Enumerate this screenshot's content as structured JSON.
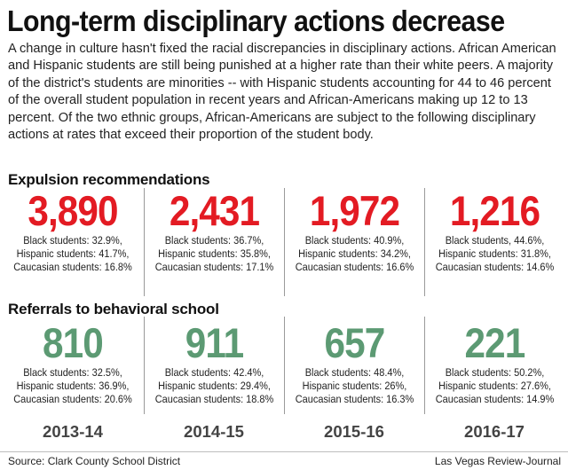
{
  "title": "Long-term disciplinary actions decrease",
  "intro": "A change in culture hasn't fixed the racial discrepancies in disciplinary actions. African American and Hispanic students are still being punished at a higher rate than their white peers. A majority of the district's students are minorities -- with Hispanic students accounting for 44 to 46 percent of the overall student population in recent years and African-Americans making up 12 to 13 percent. Of the two ethnic groups, African-Americans are subject to the following disciplinary actions at rates that exceed their proportion of the student body.",
  "source": "Source: Clark County School District",
  "credit": "Las Vegas Review-Journal",
  "colors": {
    "expulsion": "#e31b23",
    "referral": "#5c9a73",
    "divider": "#9a9a9a"
  },
  "chart_data": [
    {
      "type": "table",
      "title": "Expulsion recommendations",
      "categories": [
        "2013-14",
        "2014-15",
        "2015-16",
        "2016-17"
      ],
      "values": [
        3890,
        2431,
        1972,
        1216
      ],
      "display": [
        "3,890",
        "2,431",
        "1,972",
        "1,216"
      ],
      "breakdown": [
        {
          "black": "Black students: 32.9%,",
          "hispanic": "Hispanic students: 41.7%,",
          "caucasian": "Caucasian students: 16.8%"
        },
        {
          "black": "Black students: 36.7%,",
          "hispanic": "Hispanic students: 35.8%,",
          "caucasian": "Caucasian students: 17.1%"
        },
        {
          "black": "Black students: 40.9%,",
          "hispanic": "Hispanic students: 34.2%,",
          "caucasian": "Caucasian students: 16.6%"
        },
        {
          "black": "Black students, 44.6%,",
          "hispanic": "Hispanic students: 31.8%,",
          "caucasian": "Caucasian students: 14.6%"
        }
      ]
    },
    {
      "type": "table",
      "title": "Referrals to behavioral school",
      "categories": [
        "2013-14",
        "2014-15",
        "2015-16",
        "2016-17"
      ],
      "values": [
        810,
        911,
        657,
        221
      ],
      "display": [
        "810",
        "911",
        "657",
        "221"
      ],
      "breakdown": [
        {
          "black": "Black students: 32.5%,",
          "hispanic": "Hispanic students: 36.9%,",
          "caucasian": "Caucasian students: 20.6%"
        },
        {
          "black": "Black students: 42.4%,",
          "hispanic": "Hispanic students: 29.4%,",
          "caucasian": "Caucasian students: 18.8%"
        },
        {
          "black": "Black students: 48.4%,",
          "hispanic": "Hispanic students: 26%,",
          "caucasian": "Caucasian students: 16.3%"
        },
        {
          "black": "Black students: 50.2%,",
          "hispanic": "Hispanic students: 27.6%,",
          "caucasian": "Caucasian students: 14.9%"
        }
      ]
    }
  ]
}
